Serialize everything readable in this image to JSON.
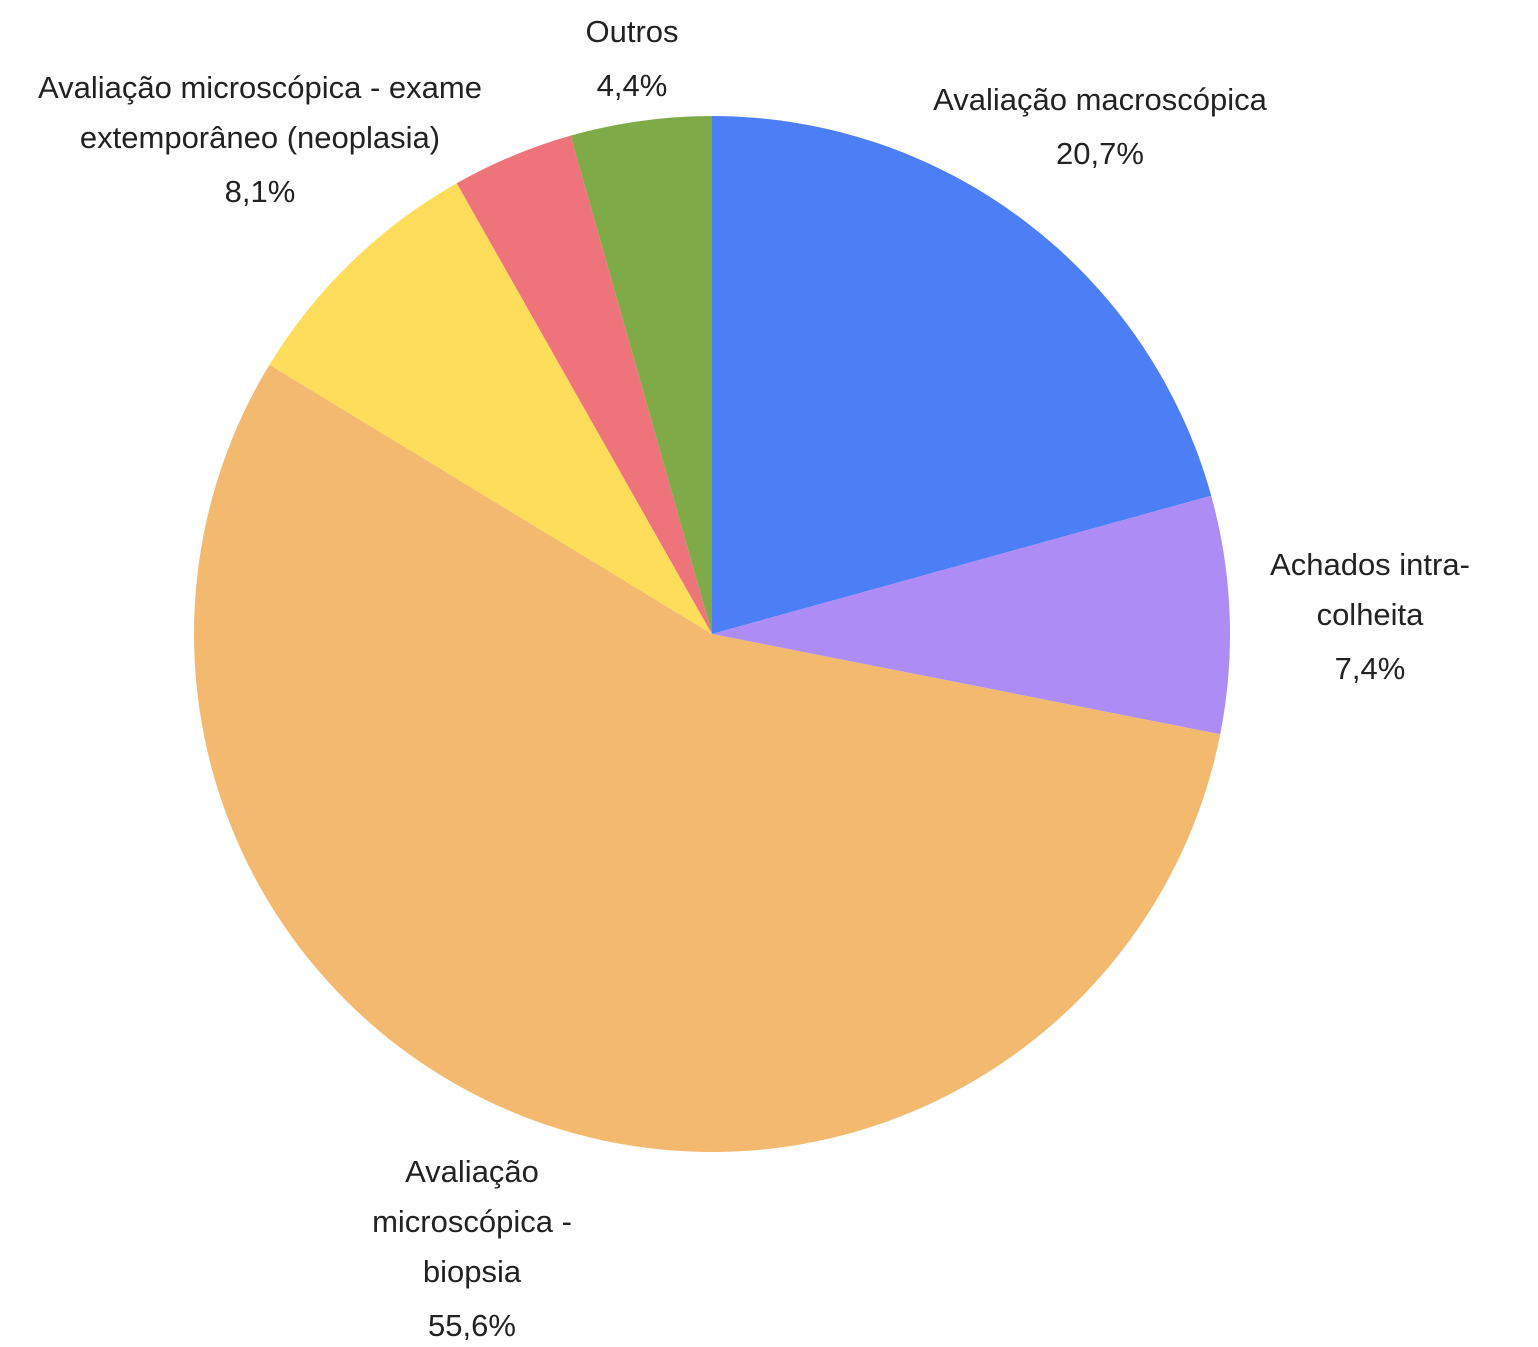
{
  "chart_data": {
    "type": "pie",
    "categories": [
      "Avaliação macroscópica",
      "Achados intra-colheita",
      "Avaliação microscópica - biopsia",
      "Avaliação microscópica - exame extemporâneo (neoplasia)",
      null,
      "Outros"
    ],
    "values": [
      20.7,
      7.4,
      55.6,
      8.1,
      3.8,
      4.4
    ],
    "value_labels": [
      "20,7%",
      "7,4%",
      "55,6%",
      "8,1%",
      null,
      "4,4%"
    ],
    "colors": [
      "#4c7ff5",
      "#ad8cf5",
      "#f3b96f",
      "#fedd5a",
      "#ef737b",
      "#7eab48"
    ]
  }
}
